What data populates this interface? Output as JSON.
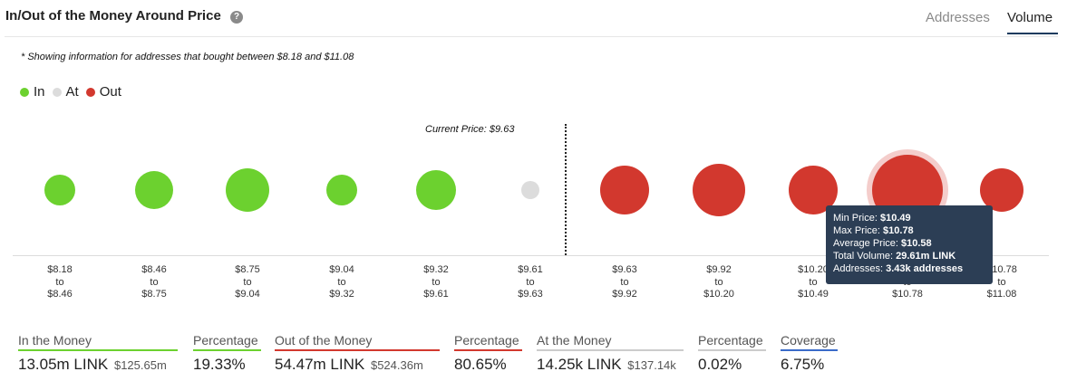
{
  "header": {
    "title": "In/Out of the Money Around Price",
    "help_icon": "question-circle-icon",
    "tabs": [
      {
        "label": "Addresses",
        "active": false
      },
      {
        "label": "Volume",
        "active": true
      }
    ]
  },
  "note": "* Showing information for addresses that bought between $8.18 and $11.08",
  "legend": [
    {
      "label": "In",
      "color": "#6cd12f"
    },
    {
      "label": "At",
      "color": "#dcdcdc"
    },
    {
      "label": "Out",
      "color": "#d2382e"
    }
  ],
  "current_price_label": "Current Price: $9.63",
  "chart_data": {
    "type": "scatter",
    "current_price": 9.63,
    "price_ranges": [
      {
        "from": "$8.18",
        "to_word": "to",
        "to": "$8.46",
        "status": "in"
      },
      {
        "from": "$8.46",
        "to_word": "to",
        "to": "$8.75",
        "status": "in"
      },
      {
        "from": "$8.75",
        "to_word": "to",
        "to": "$9.04",
        "status": "in"
      },
      {
        "from": "$9.04",
        "to_word": "to",
        "to": "$9.32",
        "status": "in"
      },
      {
        "from": "$9.32",
        "to_word": "to",
        "to": "$9.61",
        "status": "in"
      },
      {
        "from": "$9.61",
        "to_word": "to",
        "to": "$9.63",
        "status": "at"
      },
      {
        "from": "$9.63",
        "to_word": "to",
        "to": "$9.92",
        "status": "out"
      },
      {
        "from": "$9.92",
        "to_word": "to",
        "to": "$10.20",
        "status": "out"
      },
      {
        "from": "$10.20",
        "to_word": "to",
        "to": "$10.49",
        "status": "out"
      },
      {
        "from": "$10.49",
        "to_word": "to",
        "to": "$10.78",
        "status": "out",
        "highlighted": true
      },
      {
        "from": "$10.78",
        "to_word": "to",
        "to": "$11.08",
        "status": "out"
      }
    ]
  },
  "tooltip": {
    "min_price_label": "Min Price:",
    "min_price": "$10.49",
    "max_price_label": "Max Price:",
    "max_price": "$10.78",
    "avg_price_label": "Average Price:",
    "avg_price": "$10.58",
    "total_volume_label": "Total Volume:",
    "total_volume": "29.61m LINK",
    "addresses_label": "Addresses:",
    "addresses": "3.43k addresses"
  },
  "stats": [
    {
      "label": "In the Money",
      "value": "13.05m LINK",
      "sub": "$125.65m",
      "color": "#6cd12f"
    },
    {
      "label": "Percentage",
      "value": "19.33%",
      "sub": "",
      "color": "#6cd12f"
    },
    {
      "label": "Out of the Money",
      "value": "54.47m LINK",
      "sub": "$524.36m",
      "color": "#d2382e"
    },
    {
      "label": "Percentage",
      "value": "80.65%",
      "sub": "",
      "color": "#d2382e"
    },
    {
      "label": "At the Money",
      "value": "14.25k LINK",
      "sub": "$137.14k",
      "color": "#cccccc"
    },
    {
      "label": "Percentage",
      "value": "0.02%",
      "sub": "",
      "color": "#cccccc"
    },
    {
      "label": "Coverage",
      "value": "6.75%",
      "sub": "",
      "color": "#3a6bc9"
    }
  ]
}
